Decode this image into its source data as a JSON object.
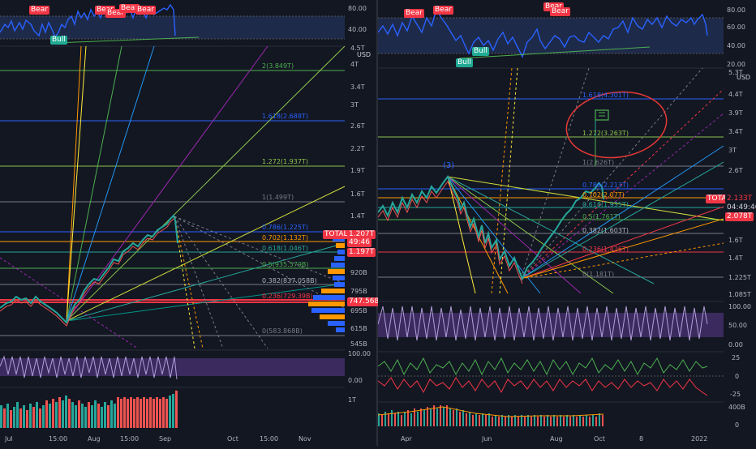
{
  "left": {
    "rsi": {
      "axis": [
        "80.00",
        "40.00"
      ],
      "labels": {
        "bear1": "Bear",
        "bear2": "Bear",
        "bear3": "Bear",
        "bear4": "Bear",
        "bear5": "Bear",
        "bull": "Bull"
      }
    },
    "price_axis": [
      "4.5T",
      "4T",
      "3.4T",
      "3T",
      "2.6T",
      "2.2T",
      "1.9T",
      "1.6T",
      "1.4T",
      "920B",
      "795B",
      "695B",
      "615B",
      "545B"
    ],
    "currency": "USD",
    "fib": [
      {
        "label": "2(3.849T)"
      },
      {
        "label": "1.618(2.688T)"
      },
      {
        "label": "1.272(1.937T)"
      },
      {
        "label": "1(1.499T)"
      },
      {
        "label": "0.786(1.225T)"
      },
      {
        "label": "0.702(1.132T)"
      },
      {
        "label": "0.618(1.046T)"
      },
      {
        "label": "0.5(935.579B)"
      },
      {
        "label": "0.382(837.058B)"
      },
      {
        "label": "0.236(729.39B)"
      },
      {
        "label": "0(583.868B)"
      }
    ],
    "badges": {
      "symbol": "TOTAL2",
      "price": "1.207T",
      "countdown": "49:46",
      "price2": "1.197T",
      "low": "747.568B"
    },
    "osc_axis": [
      "100.00",
      "0.00"
    ],
    "vol_axis": [
      "1T"
    ],
    "time_axis": [
      "Jul",
      "15:00",
      "Aug",
      "15:00",
      "Sep",
      "Oct",
      "15:00",
      "Nov"
    ]
  },
  "right": {
    "rsi": {
      "axis": [
        "80.00",
        "60.00",
        "40.00",
        "20.00"
      ],
      "labels": {
        "bear1": "Bear",
        "bear2": "Bear",
        "bear3": "Bear",
        "bear4": "Bear",
        "bull1": "Bull",
        "bull2": "Bull"
      }
    },
    "price_axis": [
      "5.3T",
      "4.4T",
      "3.9T",
      "3.4T",
      "3T",
      "2.6T",
      "1.6T",
      "1.4T",
      "1.225T",
      "1.085T"
    ],
    "currency": "USD",
    "fib": [
      {
        "label": "1.618(4.301T)"
      },
      {
        "label": "1.272(3.263T)"
      },
      {
        "label": "1(2.626T)"
      },
      {
        "label": "0.786(2.213T)"
      },
      {
        "label": "0.702(2.07T)"
      },
      {
        "label": "0.618(1.935T)"
      },
      {
        "label": "0.5(1.761T)"
      },
      {
        "label": "0.382(1.603T)"
      },
      {
        "label": "0.236(1.426T)"
      },
      {
        "label": "0(1.181T)"
      }
    ],
    "wave_label": "(3)",
    "badges": {
      "symbol": "TOTAL",
      "price": "2.133T",
      "countdown": "04:49:46",
      "price2": "2.078T"
    },
    "osc1_axis": [
      "100.00",
      "50.00",
      "0.00"
    ],
    "osc2_axis": [
      "25",
      "0",
      "-25"
    ],
    "vol_axis": [
      "400B",
      "0"
    ],
    "time_axis": [
      "Apr",
      "Jun",
      "Aug",
      "Oct",
      "8",
      "2022"
    ]
  },
  "colors": {
    "background": "#131722",
    "rsi_line": "#2962ff",
    "bear_tag": "#f23645",
    "bull_tag": "#22ab94",
    "osc_band": "#7e57c2",
    "price_badge_red": "#f23645",
    "highlight_circle": "#e53935"
  }
}
